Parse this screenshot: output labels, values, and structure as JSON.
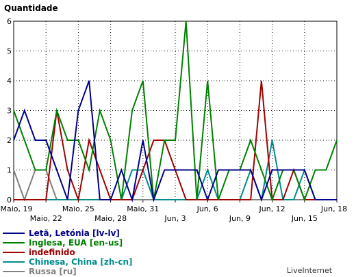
{
  "chart_data": {
    "type": "line",
    "title": "Quantidade",
    "ylim": [
      0,
      6
    ],
    "yticks": [
      "0",
      "1",
      "2",
      "3",
      "4",
      "5",
      "6"
    ],
    "x": [
      "Maio, 19",
      "Maio, 20",
      "Maio, 21",
      "Maio, 22",
      "Maio, 23",
      "Maio, 24",
      "Maio, 25",
      "Maio, 26",
      "Maio, 27",
      "Maio, 28",
      "Maio, 29",
      "Maio, 30",
      "Maio, 31",
      "Jun, 1",
      "Jun, 2",
      "Jun, 3",
      "Jun, 4",
      "Jun, 5",
      "Jun, 6",
      "Jun, 7",
      "Jun, 8",
      "Jun, 9",
      "Jun, 10",
      "Jun, 11",
      "Jun, 12",
      "Jun, 13",
      "Jun, 14",
      "Jun, 15",
      "Jun, 16",
      "Jun, 17",
      "Jun, 18"
    ],
    "xticks_row1": [
      "Maio, 19",
      "Maio, 25",
      "Maio, 31",
      "Jun, 6",
      "Jun, 12",
      "Jun, 18"
    ],
    "xticks_row2": [
      "Maio, 22",
      "Maio, 28",
      "Jun, 3",
      "Jun, 9",
      "Jun, 15"
    ],
    "grid": true,
    "series": [
      {
        "name": "Letã, Letónia [lv-lv]",
        "color": "#00008b",
        "values": [
          2,
          3,
          2,
          2,
          1,
          0,
          3,
          4,
          0,
          0,
          1,
          0,
          2,
          0,
          1,
          1,
          1,
          1,
          0,
          1,
          1,
          1,
          1,
          0,
          1,
          1,
          1,
          1,
          0,
          0,
          0
        ]
      },
      {
        "name": "Inglesa, EUA [en-us]",
        "color": "#008000",
        "values": [
          3,
          2,
          1,
          1,
          3,
          2,
          2,
          1,
          3,
          2,
          0,
          3,
          4,
          0,
          2,
          2,
          6,
          0,
          4,
          0,
          1,
          1,
          2,
          1,
          0,
          1,
          1,
          0,
          1,
          1,
          2
        ]
      },
      {
        "name": "indefinido",
        "color": "#a00000",
        "values": [
          0,
          0,
          0,
          0,
          3,
          1,
          0,
          2,
          1,
          0,
          0,
          0,
          1,
          2,
          2,
          1,
          0,
          0,
          0,
          0,
          0,
          0,
          0,
          4,
          0,
          0,
          1,
          0,
          0,
          0,
          0
        ]
      },
      {
        "name": "Chinesa, China [zh-cn]",
        "color": "#008b8b",
        "values": [
          0,
          0,
          0,
          0,
          0,
          0,
          0,
          0,
          0,
          0,
          0,
          1,
          1,
          0,
          0,
          0,
          0,
          0,
          1,
          0,
          0,
          0,
          1,
          0,
          2,
          0,
          0,
          1,
          0,
          0,
          0
        ]
      },
      {
        "name": "Russa [ru]",
        "color": "#808080",
        "values": [
          1,
          0,
          1,
          1,
          0,
          0,
          0,
          0,
          0,
          0,
          0,
          0,
          0,
          0,
          0,
          0,
          0,
          0,
          0,
          0,
          0,
          0,
          0,
          0,
          0,
          0,
          0,
          0,
          0,
          0,
          0
        ]
      }
    ]
  },
  "branding": "LiveInternet"
}
